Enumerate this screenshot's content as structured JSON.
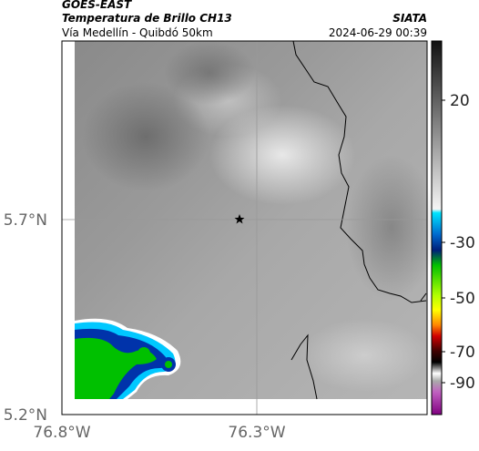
{
  "header": {
    "product": "GOES-EAST",
    "title": "Temperatura de Brillo CH13",
    "source": "SIATA",
    "location": "Vía Medellín - Quibdó 50km",
    "timestamp": "2024-06-29 00:39"
  },
  "map": {
    "lat_labels": [
      "5.7°N",
      "5.2°N"
    ],
    "lon_labels": [
      "76.8°W",
      "76.3°W"
    ]
  },
  "colorbar": {
    "labels": [
      "20",
      "-30",
      "-50",
      "-70",
      "-90"
    ]
  }
}
